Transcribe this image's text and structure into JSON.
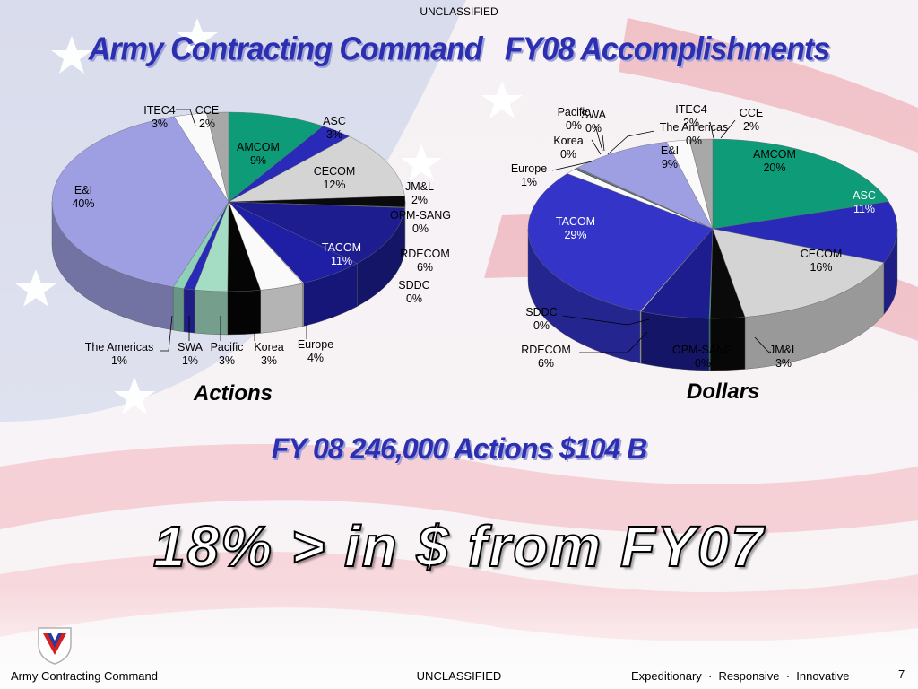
{
  "header": {
    "classification": "UNCLASSIFIED",
    "title": "Army Contracting Command   FY08 Accomplishments"
  },
  "summary": "FY 08 246,000 Actions $104 B",
  "headline": "18% > in $ from FY07",
  "footer": {
    "org": "Army Contracting Command",
    "classification": "UNCLASSIFIED",
    "motto": "Expeditionary  ·  Responsive  ·  Innovative",
    "page": "7"
  },
  "chart_data": [
    {
      "type": "pie",
      "title": "Actions",
      "slices": [
        {
          "label": "AMCOM",
          "value": 9,
          "text": "9%",
          "color": "#0e9c78"
        },
        {
          "label": "ASC",
          "value": 3,
          "text": "3%",
          "color": "#2a2ab8"
        },
        {
          "label": "CECOM",
          "value": 12,
          "text": "12%",
          "color": "#d4d4d4"
        },
        {
          "label": "JM&L",
          "value": 2,
          "text": "2%",
          "color": "#0a0a0a"
        },
        {
          "label": "OPM-SANG",
          "value": 0,
          "text": "0%",
          "color": "#18b0a0"
        },
        {
          "label": "TACOM",
          "value": 11,
          "text": "11%",
          "color": "#1d1d90"
        },
        {
          "label": "RDECOM",
          "value": 6,
          "text": "6%",
          "color": "#1f1fa6"
        },
        {
          "label": "SDDC",
          "value": 0,
          "text": "0%",
          "color": "#ececec"
        },
        {
          "label": "Europe",
          "value": 4,
          "text": "4%",
          "color": "#fafafa"
        },
        {
          "label": "Korea",
          "value": 3,
          "text": "3%",
          "color": "#050505"
        },
        {
          "label": "Pacific",
          "value": 3,
          "text": "3%",
          "color": "#a4dcc4"
        },
        {
          "label": "SWA",
          "value": 1,
          "text": "1%",
          "color": "#2a2ab8"
        },
        {
          "label": "The Americas",
          "value": 1,
          "text": "1%",
          "color": "#8fd0b8"
        },
        {
          "label": "E&I",
          "value": 40,
          "text": "40%",
          "color": "#9e9ee2"
        },
        {
          "label": "ITEC4",
          "value": 3,
          "text": "3%",
          "color": "#fafafa"
        },
        {
          "label": "CCE",
          "value": 2,
          "text": "2%",
          "color": "#a8a8a8"
        }
      ]
    },
    {
      "type": "pie",
      "title": "Dollars",
      "slices": [
        {
          "label": "AMCOM",
          "value": 20,
          "text": "20%",
          "color": "#0e9c78"
        },
        {
          "label": "ASC",
          "value": 11,
          "text": "11%",
          "color": "#2a2ab8"
        },
        {
          "label": "CECOM",
          "value": 16,
          "text": "16%",
          "color": "#d4d4d4"
        },
        {
          "label": "JM&L",
          "value": 3,
          "text": "3%",
          "color": "#0a0a0a"
        },
        {
          "label": "OPM-SANG",
          "value": 0,
          "text": "0%",
          "color": "#18b0a0"
        },
        {
          "label": "RDECOM",
          "value": 6,
          "text": "6%",
          "color": "#1d1d90"
        },
        {
          "label": "SDDC",
          "value": 0,
          "text": "0%",
          "color": "#ececec"
        },
        {
          "label": "TACOM",
          "value": 29,
          "text": "29%",
          "color": "#3434c8"
        },
        {
          "label": "Europe",
          "value": 1,
          "text": "1%",
          "color": "#fafafa"
        },
        {
          "label": "Korea",
          "value": 0,
          "text": "0%",
          "color": "#050505"
        },
        {
          "label": "Pacific",
          "value": 0,
          "text": "0%",
          "color": "#a4dcc4"
        },
        {
          "label": "SWA",
          "value": 0,
          "text": "0%",
          "color": "#2a2ab8"
        },
        {
          "label": "The Americas",
          "value": 0,
          "text": "0%",
          "color": "#8fd0b8"
        },
        {
          "label": "E&I",
          "value": 9,
          "text": "9%",
          "color": "#9e9ee2"
        },
        {
          "label": "ITEC4",
          "value": 2,
          "text": "2%",
          "color": "#fafafa"
        },
        {
          "label": "CCE",
          "value": 2,
          "text": "2%",
          "color": "#a8a8a8"
        }
      ]
    }
  ]
}
